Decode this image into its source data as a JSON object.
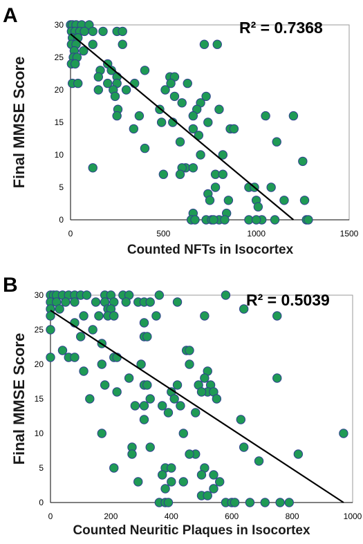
{
  "chart_data": [
    {
      "type": "scatter",
      "panel_label": "A",
      "r2_label": "R² = 0.7368",
      "xlabel": "Counted NFTs in Isocortex",
      "ylabel": "Final MMSE Score",
      "xlim": [
        0,
        1500
      ],
      "ylim": [
        0,
        30
      ],
      "x_ticks": [
        "0",
        "500",
        "1000",
        "1500"
      ],
      "y_ticks": [
        "0",
        "5",
        "10",
        "15",
        "20",
        "25",
        "30"
      ],
      "grid": false,
      "fit_line": {
        "x": [
          0,
          1200
        ],
        "y": [
          28.6,
          0
        ]
      },
      "points": [
        [
          0,
          30
        ],
        [
          10,
          30
        ],
        [
          30,
          30
        ],
        [
          60,
          30
        ],
        [
          100,
          30
        ],
        [
          5,
          29
        ],
        [
          25,
          29
        ],
        [
          50,
          29
        ],
        [
          75,
          29
        ],
        [
          120,
          29
        ],
        [
          175,
          29
        ],
        [
          250,
          29
        ],
        [
          280,
          29
        ],
        [
          10,
          28
        ],
        [
          40,
          28
        ],
        [
          5,
          27
        ],
        [
          30,
          27
        ],
        [
          120,
          27
        ],
        [
          280,
          27
        ],
        [
          20,
          26
        ],
        [
          70,
          26
        ],
        [
          15,
          25
        ],
        [
          35,
          25
        ],
        [
          5,
          24
        ],
        [
          25,
          24
        ],
        [
          200,
          24
        ],
        [
          220,
          23
        ],
        [
          400,
          23
        ],
        [
          160,
          23
        ],
        [
          250,
          22
        ],
        [
          150,
          22
        ],
        [
          535,
          22
        ],
        [
          560,
          22
        ],
        [
          10,
          21
        ],
        [
          40,
          21
        ],
        [
          200,
          21
        ],
        [
          250,
          21
        ],
        [
          345,
          21
        ],
        [
          630,
          21
        ],
        [
          540,
          21
        ],
        [
          150,
          20
        ],
        [
          230,
          20
        ],
        [
          300,
          20
        ],
        [
          510,
          20
        ],
        [
          730,
          19
        ],
        [
          560,
          19
        ],
        [
          240,
          19
        ],
        [
          600,
          18
        ],
        [
          700,
          18
        ],
        [
          680,
          17
        ],
        [
          480,
          17
        ],
        [
          255,
          17
        ],
        [
          800,
          17
        ],
        [
          250,
          16
        ],
        [
          370,
          16
        ],
        [
          660,
          16
        ],
        [
          1050,
          16
        ],
        [
          1200,
          16
        ],
        [
          490,
          15
        ],
        [
          550,
          15
        ],
        [
          740,
          15
        ],
        [
          340,
          14
        ],
        [
          660,
          14
        ],
        [
          860,
          14
        ],
        [
          880,
          14
        ],
        [
          690,
          13
        ],
        [
          400,
          11
        ],
        [
          590,
          12
        ],
        [
          1110,
          12
        ],
        [
          700,
          10
        ],
        [
          820,
          10
        ],
        [
          120,
          8
        ],
        [
          620,
          8
        ],
        [
          600,
          8
        ],
        [
          660,
          8
        ],
        [
          590,
          7
        ],
        [
          500,
          7
        ],
        [
          780,
          7
        ],
        [
          820,
          7
        ],
        [
          1250,
          9
        ],
        [
          960,
          5
        ],
        [
          990,
          5
        ],
        [
          780,
          5
        ],
        [
          1080,
          5
        ],
        [
          740,
          4
        ],
        [
          1000,
          3
        ],
        [
          1150,
          3
        ],
        [
          1260,
          3
        ],
        [
          750,
          3
        ],
        [
          850,
          3
        ],
        [
          1010,
          2
        ],
        [
          660,
          1
        ],
        [
          840,
          1
        ],
        [
          650,
          0
        ],
        [
          670,
          0
        ],
        [
          730,
          0
        ],
        [
          760,
          0
        ],
        [
          800,
          0
        ],
        [
          830,
          0
        ],
        [
          960,
          0
        ],
        [
          1030,
          0
        ],
        [
          1100,
          0
        ],
        [
          1270,
          0
        ],
        [
          1280,
          0
        ],
        [
          720,
          27
        ],
        [
          790,
          27
        ],
        [
          1000,
          0
        ],
        [
          770,
          0
        ]
      ]
    },
    {
      "type": "scatter",
      "panel_label": "B",
      "r2_label": "R² = 0.5039",
      "xlabel": "Counted Neuritic Plaques in Isocortex",
      "ylabel": "Final MMSE Score",
      "xlim": [
        0,
        1000
      ],
      "ylim": [
        0,
        30
      ],
      "x_ticks": [
        "0",
        "200",
        "400",
        "600",
        "800",
        "1000"
      ],
      "y_ticks": [
        "0",
        "5",
        "10",
        "15",
        "20",
        "25",
        "30"
      ],
      "grid": false,
      "fit_line": {
        "x": [
          0,
          970
        ],
        "y": [
          27.8,
          0
        ]
      },
      "points": [
        [
          0,
          30
        ],
        [
          10,
          30
        ],
        [
          20,
          30
        ],
        [
          40,
          30
        ],
        [
          60,
          30
        ],
        [
          80,
          30
        ],
        [
          100,
          30
        ],
        [
          120,
          30
        ],
        [
          180,
          30
        ],
        [
          200,
          30
        ],
        [
          240,
          30
        ],
        [
          260,
          30
        ],
        [
          360,
          30
        ],
        [
          580,
          30
        ],
        [
          0,
          29
        ],
        [
          20,
          29
        ],
        [
          50,
          29
        ],
        [
          80,
          29
        ],
        [
          150,
          29
        ],
        [
          180,
          29
        ],
        [
          210,
          29
        ],
        [
          250,
          29
        ],
        [
          290,
          29
        ],
        [
          310,
          29
        ],
        [
          330,
          29
        ],
        [
          420,
          29
        ],
        [
          0,
          28
        ],
        [
          30,
          28
        ],
        [
          190,
          28
        ],
        [
          200,
          28
        ],
        [
          640,
          28
        ],
        [
          0,
          27
        ],
        [
          110,
          27
        ],
        [
          160,
          27
        ],
        [
          190,
          27
        ],
        [
          210,
          27
        ],
        [
          350,
          27
        ],
        [
          510,
          27
        ],
        [
          750,
          27
        ],
        [
          80,
          26
        ],
        [
          310,
          26
        ],
        [
          0,
          25
        ],
        [
          140,
          25
        ],
        [
          310,
          24
        ],
        [
          320,
          24
        ],
        [
          100,
          24
        ],
        [
          170,
          23
        ],
        [
          450,
          22
        ],
        [
          460,
          22
        ],
        [
          40,
          22
        ],
        [
          60,
          21
        ],
        [
          80,
          21
        ],
        [
          210,
          21
        ],
        [
          220,
          21
        ],
        [
          0,
          21
        ],
        [
          170,
          20
        ],
        [
          300,
          20
        ],
        [
          460,
          20
        ],
        [
          520,
          19
        ],
        [
          110,
          19
        ],
        [
          510,
          18
        ],
        [
          260,
          18
        ],
        [
          750,
          18
        ],
        [
          180,
          17
        ],
        [
          310,
          17
        ],
        [
          320,
          17
        ],
        [
          420,
          17
        ],
        [
          530,
          17
        ],
        [
          490,
          17
        ],
        [
          400,
          16
        ],
        [
          520,
          16
        ],
        [
          540,
          16
        ],
        [
          220,
          16
        ],
        [
          500,
          16
        ],
        [
          330,
          15
        ],
        [
          410,
          15
        ],
        [
          130,
          15
        ],
        [
          550,
          15
        ],
        [
          280,
          14
        ],
        [
          310,
          14
        ],
        [
          370,
          14
        ],
        [
          430,
          14
        ],
        [
          390,
          13
        ],
        [
          480,
          13
        ],
        [
          310,
          12
        ],
        [
          630,
          12
        ],
        [
          170,
          10
        ],
        [
          440,
          10
        ],
        [
          970,
          10
        ],
        [
          270,
          8
        ],
        [
          270,
          7
        ],
        [
          330,
          8
        ],
        [
          480,
          7
        ],
        [
          640,
          8
        ],
        [
          460,
          7
        ],
        [
          690,
          6
        ],
        [
          820,
          7
        ],
        [
          210,
          5
        ],
        [
          380,
          5
        ],
        [
          400,
          5
        ],
        [
          510,
          5
        ],
        [
          370,
          4
        ],
        [
          500,
          4
        ],
        [
          540,
          4
        ],
        [
          290,
          3
        ],
        [
          400,
          3
        ],
        [
          440,
          3
        ],
        [
          560,
          3
        ],
        [
          380,
          2
        ],
        [
          540,
          2
        ],
        [
          500,
          1
        ],
        [
          520,
          1
        ],
        [
          580,
          0
        ],
        [
          360,
          0
        ],
        [
          380,
          0
        ],
        [
          600,
          0
        ],
        [
          610,
          0
        ],
        [
          660,
          0
        ],
        [
          710,
          0
        ],
        [
          760,
          0
        ],
        [
          790,
          0
        ],
        [
          390,
          0
        ]
      ]
    }
  ]
}
